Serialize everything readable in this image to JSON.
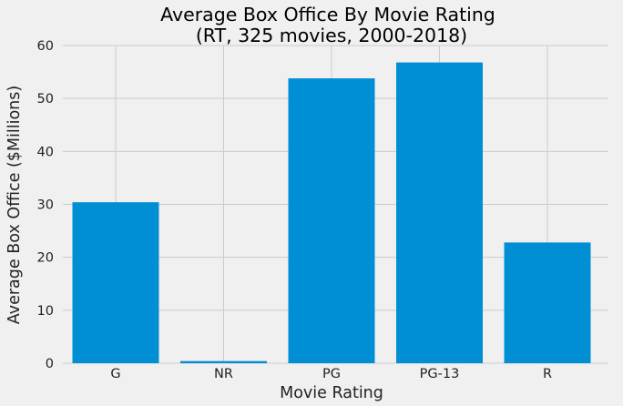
{
  "chart_data": {
    "type": "bar",
    "title": "Average Box Office By Movie Rating",
    "subtitle": "(RT, 325 movies, 2000-2018)",
    "xlabel": "Movie Rating",
    "ylabel": "Average Box Office ($Millions)",
    "categories": [
      "G",
      "NR",
      "PG",
      "PG-13",
      "R"
    ],
    "values": [
      30.4,
      0.4,
      53.8,
      56.8,
      22.8
    ],
    "ylim": [
      0,
      60
    ],
    "yticks": [
      "0",
      "10",
      "20",
      "30",
      "40",
      "50",
      "60"
    ],
    "grid": true,
    "bar_color": "#008fd5",
    "background_color": "#f0f0f0",
    "grid_color": "#cbcbcb"
  }
}
